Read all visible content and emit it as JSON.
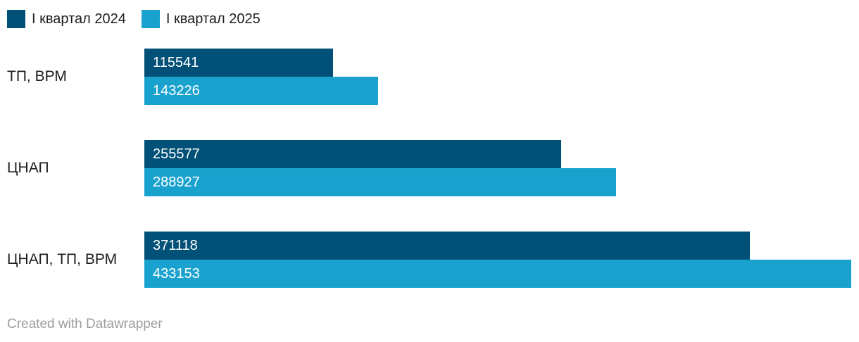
{
  "colors": {
    "series_2024": "#015077",
    "series_2025": "#1aa2cf",
    "category_label_text": "#1d1d1d",
    "bar_value_text": "#ffffff",
    "footer_text": "#9d9d9d",
    "background": "#ffffff"
  },
  "legend": {
    "items": [
      {
        "label": "I квартал 2024",
        "color": "#015077"
      },
      {
        "label": "I квартал 2025",
        "color": "#1aa2cf"
      }
    ]
  },
  "chart_data": {
    "type": "bar",
    "orientation": "horizontal",
    "title": "",
    "xlabel": "",
    "ylabel": "",
    "axis_visible": false,
    "grid": false,
    "legend_position": "top-left",
    "value_labels": "inside-start",
    "categories": [
      "ТП, ВРМ",
      "ЦНАП",
      "ЦНАП, ТП, ВРМ"
    ],
    "series": [
      {
        "name": "I квартал 2024",
        "color": "#015077",
        "values": [
          115541,
          255577,
          371118
        ]
      },
      {
        "name": "I квартал 2025",
        "color": "#1aa2cf",
        "values": [
          143226,
          288927,
          433153
        ]
      }
    ],
    "xlim": [
      0,
      433153
    ]
  },
  "footer": {
    "credit": "Created with Datawrapper"
  }
}
